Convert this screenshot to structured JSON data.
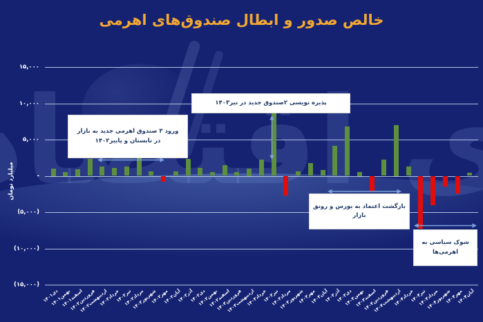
{
  "chart_data": {
    "type": "bar",
    "title": "خالص صدور و ابطال صندوق‌های اهرمی",
    "xlabel": "",
    "ylabel": "میلیارد تومان",
    "ylim": [
      -15000,
      15000
    ],
    "grid": true,
    "legend": "none",
    "yticks": [
      {
        "value": 15000,
        "label": "۱۵,۰۰۰"
      },
      {
        "value": 10000,
        "label": "۱۰,۰۰۰"
      },
      {
        "value": 5000,
        "label": "۵,۰۰۰"
      },
      {
        "value": 0,
        "label": "-"
      },
      {
        "value": -5000,
        "label": "(۵,۰۰۰)"
      },
      {
        "value": -10000,
        "label": "(۱۰,۰۰۰)"
      },
      {
        "value": -15000,
        "label": "(۱۵,۰۰۰)"
      }
    ],
    "categories": [
      "دی۱۴۰۱",
      "بهمن۱۴۰۱",
      "اسفند۱۴۰۱",
      "فروردین۱۴۰۲",
      "اردیبهشت۱۴۰۲",
      "خرداد۱۴۰۲",
      "تیر۱۴۰۲",
      "مرداد۱۴۰۲",
      "شهریور۱۴۰۲",
      "مهر۱۴۰۲",
      "آبان۱۴۰۲",
      "آذر۱۴۰۲",
      "دی۱۴۰۲",
      "بهمن۱۴۰۲",
      "اسفند۱۴۰۲",
      "فروردین۱۴۰۳",
      "اردیبهشت۱۴۰۳",
      "خرداد۱۴۰۳",
      "تیر۱۴۰۳",
      "مرداد۱۴۰۳",
      "شهریور۱۴۰۳",
      "مهر۱۴۰۳",
      "آبان۱۴۰۳",
      "آذر۱۴۰۳",
      "دی۱۴۰۳",
      "بهمن۱۴۰۳",
      "اسفند۱۴۰۳",
      "فروردین۱۴۰۴",
      "اردیبهشت۱۴۰۴",
      "خرداد۱۴۰۴",
      "تیر۱۴۰۴",
      "مرداد۱۴۰۴",
      "شهریور۱۴۰۴",
      "مهر۱۴۰۴",
      "آبان۱۴۰۴"
    ],
    "values": [
      1000,
      500,
      900,
      2300,
      1250,
      1100,
      1300,
      2450,
      650,
      -800,
      600,
      2300,
      1100,
      550,
      1450,
      550,
      1000,
      2200,
      8700,
      -2700,
      650,
      1800,
      850,
      4100,
      6800,
      500,
      -2100,
      2200,
      7000,
      1300,
      -7300,
      -4000,
      -1500,
      -2400,
      450
    ],
    "positive_color": "#5E8F3E",
    "negative_color": "#E20C0C",
    "annotations": [
      {
        "id": "new-funds-1402",
        "text_lines": [
          "ورود ۳ صندوق اهرمی جدید به بازار",
          "در تابستان و پاییز۱۴۰۲"
        ]
      },
      {
        "id": "subscription-tir-1403",
        "text_lines": [
          "پذیره نویسی ۲صندوق جدید در تیر۱۴۰۳"
        ]
      },
      {
        "id": "trust-return",
        "text_lines": [
          "بازگشت اعتماد به بورس و رونق بازار"
        ]
      },
      {
        "id": "political-shock",
        "text_lines": [
          "شوک سیاسی به",
          "اهرمی‌ها"
        ]
      }
    ]
  },
  "colors": {
    "background": "#152272",
    "title": "#F3A832",
    "gridline": "#CDDAF3",
    "arrow": "#7DA2DC",
    "annotation_text": "#1F3864",
    "axis_text": "#FFFFFF"
  }
}
